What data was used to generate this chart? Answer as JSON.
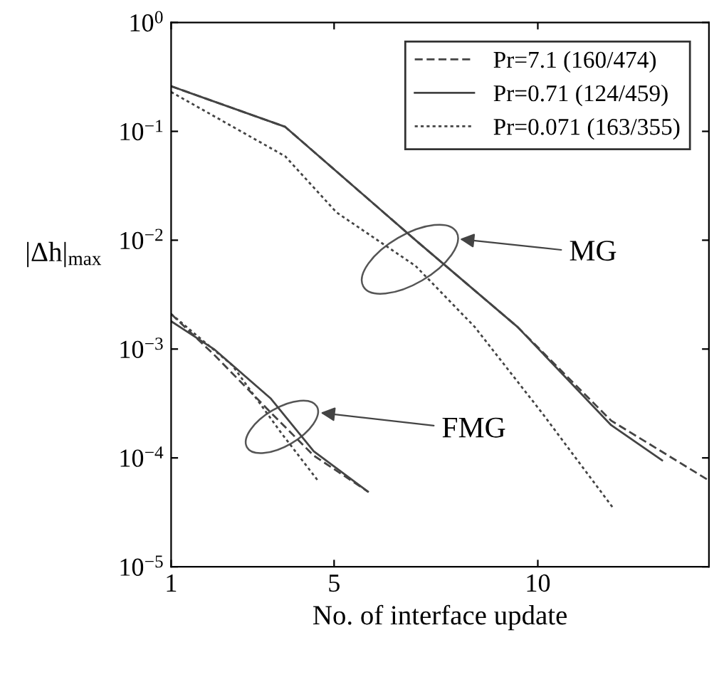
{
  "chart_data": {
    "type": "line",
    "xlabel": "No. of interface update",
    "ylabel": "|Δh|$_{max}$",
    "log": "y",
    "xlim": [
      1,
      14.2
    ],
    "xticks": [
      1,
      5,
      10
    ],
    "ylim": [
      1e-05,
      1
    ],
    "yticks": [
      {
        "value": 1e-05,
        "label": "10$^{−5}$"
      },
      {
        "value": 0.0001,
        "label": "10$^{−4}$"
      },
      {
        "value": 0.001,
        "label": "10$^{−3}$"
      },
      {
        "value": 0.01,
        "label": "10$^{−2}$"
      },
      {
        "value": 0.1,
        "label": "10$^{−1}$"
      },
      {
        "value": 1,
        "label": "10$^{0}$"
      }
    ],
    "legend": "top right",
    "annotations": [
      "MG",
      "FMG"
    ],
    "series": [
      {
        "name": "Pr=7.1 (160/474)",
        "color": "#444444",
        "line_style": "dashed",
        "x": [
          1,
          3.8,
          7.0,
          9.5,
          11.8,
          14.2
        ],
        "values": [
          0.26,
          0.11,
          0.01,
          0.0016,
          0.00022,
          6.2e-05
        ]
      },
      {
        "name": "Pr=0.71 (124/459)",
        "color": "#444444",
        "line_style": "solid",
        "x": [
          1,
          3.8,
          7.0,
          9.5,
          11.8,
          13.05
        ],
        "values": [
          0.26,
          0.11,
          0.01,
          0.0016,
          0.0002,
          9.5e-05
        ]
      },
      {
        "name": "Pr=0.071 (163/355)",
        "color": "#444444",
        "line_style": "dotted",
        "x": [
          1,
          3.8,
          5.06,
          7.0,
          8.45,
          10.1,
          11.84
        ],
        "values": [
          0.23,
          0.059,
          0.018,
          0.0058,
          0.0016,
          0.00026,
          3.5e-05
        ]
      },
      {
        "color": "#444444",
        "line_style": "dashed",
        "x": [
          1,
          2.05,
          3.45,
          4.5,
          5.83
        ],
        "values": [
          0.0021,
          0.00089,
          0.00026,
          0.000105,
          4.9e-05
        ]
      },
      {
        "color": "#444444",
        "line_style": "solid",
        "x": [
          1,
          2.05,
          3.45,
          4.5,
          5.83
        ],
        "values": [
          0.0018,
          0.001,
          0.00035,
          0.000115,
          4.9e-05
        ]
      },
      {
        "color": "#444444",
        "line_style": "dotted",
        "x": [
          1,
          2.5,
          3.7,
          4.6
        ],
        "values": [
          0.0021,
          0.00071,
          0.00017,
          6.2e-05
        ]
      }
    ]
  }
}
